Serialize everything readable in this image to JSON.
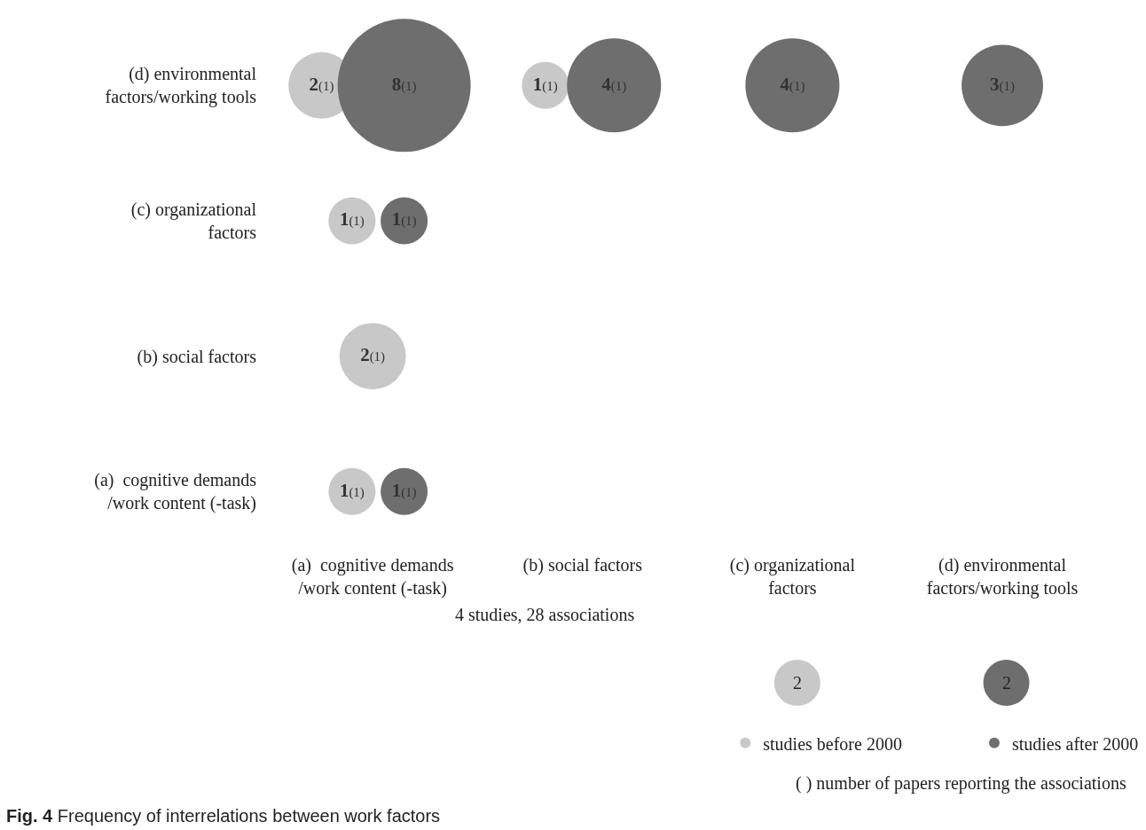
{
  "chart_data": {
    "type": "other",
    "categories": [
      "(a)  cognitive demands /work content (-task)",
      "(b) social factors",
      "(c) organizational factors",
      "(d) environmental factors/working tools"
    ],
    "y_categories": [
      "(d) environmental factors/working tools",
      "(c) organizational factors",
      "(b) social factors",
      "(a)  cognitive demands /work content (-task)"
    ],
    "series": [
      {
        "name": "studies before 2000",
        "color": "#c8c8c8",
        "values": [
          2,
          1,
          null,
          null
        ],
        "value_labels": [
          "2(1)",
          "1(1)",
          null,
          null
        ]
      },
      {
        "name": "studies after 2000",
        "color": "#6e6e6e",
        "values": [
          8,
          4,
          4,
          3
        ],
        "value_labels": [
          "8(1)",
          "4(1)",
          "4(1)",
          "3(1)"
        ]
      },
      {
        "color": "#c8c8c8",
        "values": [
          1,
          null,
          null,
          null
        ],
        "value_labels": [
          "1(1)",
          null,
          null,
          null
        ]
      },
      {
        "color": "#6e6e6e",
        "values": [
          1,
          null,
          null,
          null
        ],
        "value_labels": [
          "1(1)",
          null,
          null,
          null
        ]
      },
      {
        "color": "#c8c8c8",
        "values": [
          2,
          null,
          null,
          null
        ],
        "value_labels": [
          "2(1)",
          null,
          null,
          null
        ]
      },
      {
        "color": "#6e6e6e",
        "values": [
          null,
          null,
          null,
          null
        ],
        "value_labels": [
          null,
          null,
          null,
          null
        ]
      },
      {
        "color": "#c8c8c8",
        "values": [
          1,
          null,
          null,
          null
        ],
        "value_labels": [
          "1(1)",
          null,
          null,
          null
        ]
      },
      {
        "color": "#6e6e6e",
        "values": [
          1,
          null,
          null,
          null
        ],
        "value_labels": [
          "1(1)",
          null,
          null,
          null
        ]
      }
    ],
    "legend": "bottom right",
    "annotations": [
      "4 studies, 28 associations",
      "2",
      "2",
      "( ) number of papers reporting the associations",
      "Fig. 4 Frequency of interrelations between work factors"
    ]
  }
}
